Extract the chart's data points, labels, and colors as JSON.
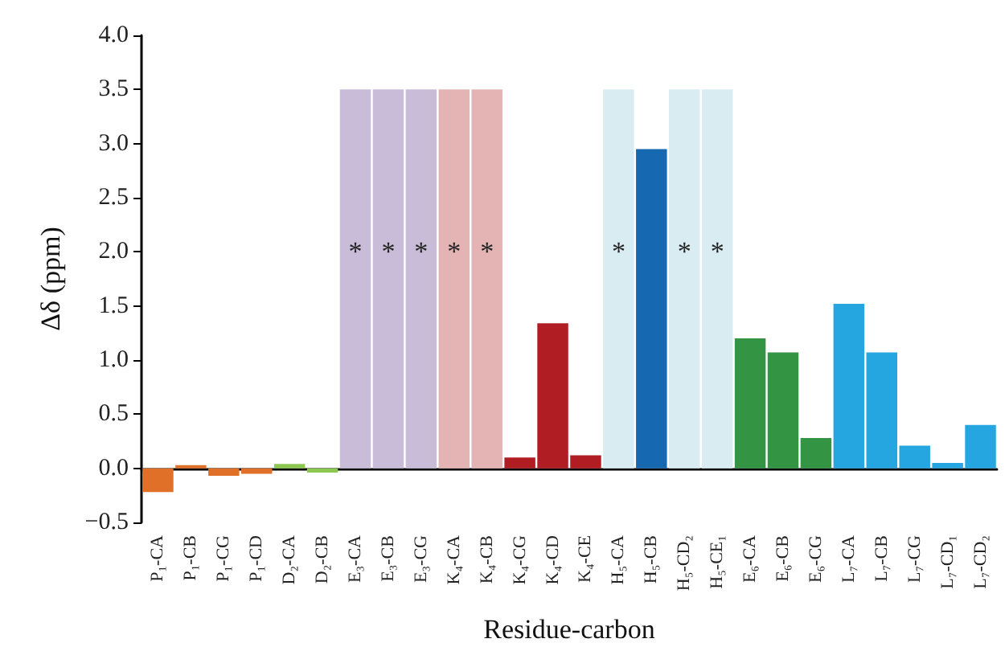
{
  "chart_data": {
    "type": "bar",
    "xlabel": "Residue-carbon",
    "ylabel": "Δδ (ppm)",
    "categories": [
      "P₁-CA",
      "P₁-CB",
      "P₁-CG",
      "P₁-CD",
      "D₂-CA",
      "D₂-CB",
      "E₃-CA",
      "E₃-CB",
      "E₃-CG",
      "K₄-CA",
      "K₄-CB",
      "K₄-CG",
      "K₄-CD",
      "K₄-CE",
      "H₅-CA",
      "H₅-CB",
      "H₅-CD₂",
      "H₅-CE₁",
      "E₆-CA",
      "E₆-CB",
      "E₆-CG",
      "L₇-CA",
      "L₇-CB",
      "L₇-CG",
      "L₇-CD₁",
      "L₇-CD₂"
    ],
    "values": [
      -0.22,
      0.03,
      -0.07,
      -0.05,
      0.04,
      -0.04,
      3.5,
      3.5,
      3.5,
      3.5,
      3.5,
      0.1,
      1.34,
      0.12,
      3.5,
      2.95,
      3.5,
      3.5,
      1.2,
      1.07,
      0.28,
      1.52,
      1.07,
      0.21,
      0.05,
      0.4
    ],
    "colors": [
      "#e07028",
      "#e07028",
      "#e07028",
      "#e07028",
      "#8cc850",
      "#8cc850",
      "#c8bcd8",
      "#c8bcd8",
      "#c8bcd8",
      "#e4b4b4",
      "#e4b4b4",
      "#b01e24",
      "#b01e24",
      "#b01e24",
      "#d8ecf2",
      "#1668b0",
      "#d8ecf2",
      "#d8ecf2",
      "#339444",
      "#339444",
      "#339444",
      "#26a6e0",
      "#26a6e0",
      "#26a6e0",
      "#26a6e0",
      "#26a6e0"
    ],
    "value_labels": [
      null,
      null,
      null,
      null,
      null,
      null,
      "*",
      "*",
      "*",
      "*",
      "*",
      null,
      null,
      null,
      "*",
      null,
      "*",
      "*",
      null,
      null,
      null,
      null,
      null,
      null,
      null,
      null
    ],
    "ylim": [
      -0.5,
      4.0
    ],
    "yticks": [
      {
        "value": -0.5,
        "label": "−0.5"
      },
      {
        "value": 0,
        "label": "0.0"
      },
      {
        "value": 0.5,
        "label": "0.5"
      },
      {
        "value": 1,
        "label": "1.0"
      },
      {
        "value": 1.5,
        "label": "1.5"
      },
      {
        "value": 2,
        "label": "2.0"
      },
      {
        "value": 2.5,
        "label": "2.5"
      },
      {
        "value": 3,
        "label": "3.0"
      },
      {
        "value": 3.5,
        "label": "3.5"
      },
      {
        "value": 4,
        "label": "4.0"
      }
    ]
  }
}
